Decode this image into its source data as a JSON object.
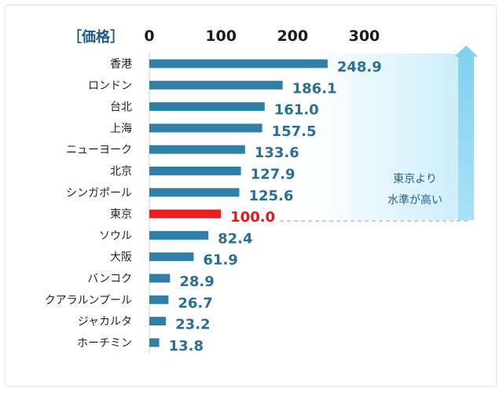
{
  "chart_data": {
    "type": "bar",
    "orientation": "horizontal",
    "title": "",
    "ylabel": "［価格］",
    "xlim": [
      0,
      300
    ],
    "xticks": [
      0,
      100,
      200,
      300
    ],
    "categories": [
      "香港",
      "ロンドン",
      "台北",
      "上海",
      "ニューヨーク",
      "北京",
      "シンガポール",
      "東京",
      "ソウル",
      "大阪",
      "バンコク",
      "クアラルンプール",
      "ジャカルタ",
      "ホーチミン"
    ],
    "values": [
      248.9,
      186.1,
      161.0,
      157.5,
      133.6,
      127.9,
      125.6,
      100.0,
      82.4,
      61.9,
      28.9,
      26.7,
      23.2,
      13.8
    ],
    "value_labels": [
      "248.9",
      "186.1",
      "161.0",
      "157.5",
      "133.6",
      "127.9",
      "125.6",
      "100.0",
      "82.4",
      "61.9",
      "28.9",
      "26.7",
      "23.2",
      "13.8"
    ],
    "highlight_category": "東京",
    "reference_value": 100.0,
    "annotation": {
      "lines": [
        "東京より",
        "水準が高い"
      ]
    },
    "colors": {
      "bar": "#2f7fa6",
      "highlight_bar": "#ee1c1c",
      "label": "#2a6f96",
      "highlight_label": "#e01818",
      "axis_text": "#222222",
      "tick_text": "#1a1a1a",
      "arrow": "#8fd6f2",
      "region_fill": "#dff3fb",
      "reference_line": "#9a9a9a"
    },
    "grid": false
  }
}
